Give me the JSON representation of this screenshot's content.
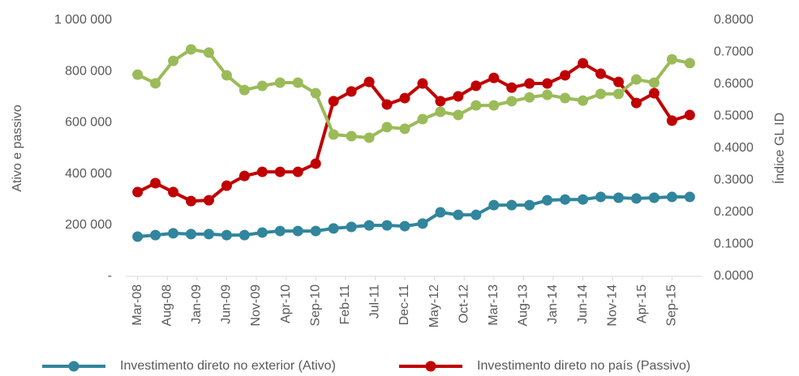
{
  "chart_data": {
    "type": "line",
    "ylabel": "Ativo e passivo",
    "y2label": "Índice GL ID",
    "x": [
      "2008-03",
      "2008-06",
      "2008-09",
      "2008-12",
      "2009-03",
      "2009-06",
      "2009-09",
      "2009-12",
      "2010-03",
      "2010-06",
      "2010-09",
      "2010-12",
      "2011-03",
      "2011-06",
      "2011-09",
      "2011-12",
      "2012-03",
      "2012-06",
      "2012-09",
      "2012-12",
      "2013-03",
      "2013-06",
      "2013-09",
      "2013-12",
      "2014-03",
      "2014-06",
      "2014-09",
      "2014-12",
      "2015-03",
      "2015-06",
      "2015-09",
      "2015-12"
    ],
    "xlim": [
      "2008-01",
      "2016-02"
    ],
    "xticks": [
      {
        "value": "2008-03",
        "label": "Mar-08"
      },
      {
        "value": "2008-08",
        "label": "Aug-08"
      },
      {
        "value": "2009-01",
        "label": "Jan-09"
      },
      {
        "value": "2009-06",
        "label": "Jun-09"
      },
      {
        "value": "2009-11",
        "label": "Nov-09"
      },
      {
        "value": "2010-04",
        "label": "Apr-10"
      },
      {
        "value": "2010-09",
        "label": "Sep-10"
      },
      {
        "value": "2011-02",
        "label": "Feb-11"
      },
      {
        "value": "2011-07",
        "label": "Jul-11"
      },
      {
        "value": "2011-12",
        "label": "Dec-11"
      },
      {
        "value": "2012-05",
        "label": "May-12"
      },
      {
        "value": "2012-10",
        "label": "Oct-12"
      },
      {
        "value": "2013-03",
        "label": "Mar-13"
      },
      {
        "value": "2013-08",
        "label": "Aug-13"
      },
      {
        "value": "2014-01",
        "label": "Jan-14"
      },
      {
        "value": "2014-06",
        "label": "Jun-14"
      },
      {
        "value": "2014-11",
        "label": "Nov-14"
      },
      {
        "value": "2015-04",
        "label": "Apr-15"
      },
      {
        "value": "2015-09",
        "label": "Sep-15"
      }
    ],
    "ylim": [
      0,
      1000000
    ],
    "yticks": [
      {
        "value": 0,
        "label": "-"
      },
      {
        "value": 200000,
        "label": "200 000"
      },
      {
        "value": 400000,
        "label": "400 000"
      },
      {
        "value": 600000,
        "label": "600 000"
      },
      {
        "value": 800000,
        "label": "800 000"
      },
      {
        "value": 1000000,
        "label": "1 000 000"
      }
    ],
    "y2lim": [
      0,
      0.8
    ],
    "y2ticks": [
      {
        "value": 0,
        "label": "0.0000"
      },
      {
        "value": 0.1,
        "label": "0.1000"
      },
      {
        "value": 0.2,
        "label": "0.2000"
      },
      {
        "value": 0.3,
        "label": "0.3000"
      },
      {
        "value": 0.4,
        "label": "0.4000"
      },
      {
        "value": 0.5,
        "label": "0.5000"
      },
      {
        "value": 0.6,
        "label": "0.6000"
      },
      {
        "value": 0.7,
        "label": "0.7000"
      },
      {
        "value": 0.8,
        "label": "0.8000"
      }
    ],
    "series": [
      {
        "name": "Investimento direto no exterior (Ativo)",
        "color": "#31859c",
        "values": [
          155000,
          161000,
          168000,
          165000,
          165000,
          161000,
          161000,
          171000,
          177000,
          177000,
          177000,
          187000,
          193000,
          199000,
          199000,
          196000,
          206000,
          250000,
          240000,
          240000,
          278000,
          278000,
          278000,
          297000,
          300000,
          300000,
          310000,
          307000,
          304000,
          307000,
          310000,
          310000
        ]
      },
      {
        "name": "Investimento direto no país (Passivo)",
        "color": "#c00000",
        "values": [
          329000,
          364000,
          329000,
          294000,
          297000,
          354000,
          392000,
          408000,
          408000,
          408000,
          440000,
          684000,
          722000,
          759000,
          671000,
          696000,
          753000,
          684000,
          703000,
          744000,
          775000,
          737000,
          753000,
          753000,
          785000,
          832000,
          791000,
          759000,
          677000,
          715000,
          608000,
          630000
        ]
      },
      {
        "color": "#9bbb59",
        "axis": "y2",
        "values": [
          0.63,
          0.603,
          0.673,
          0.709,
          0.699,
          0.628,
          0.582,
          0.595,
          0.605,
          0.605,
          0.572,
          0.443,
          0.438,
          0.433,
          0.466,
          0.461,
          0.491,
          0.514,
          0.504,
          0.534,
          0.534,
          0.547,
          0.559,
          0.567,
          0.557,
          0.549,
          0.57,
          0.57,
          0.615,
          0.605,
          0.678,
          0.666
        ]
      }
    ]
  }
}
